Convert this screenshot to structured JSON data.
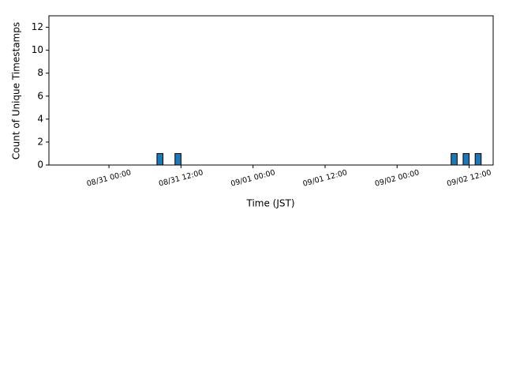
{
  "chart_data": {
    "type": "histogram",
    "xlabel": "Time (JST)",
    "ylabel": "Count of Unique Timestamps",
    "color": "#1f77b4",
    "edgecolor": "#000000",
    "bins": [
      -6,
      -5,
      -4,
      -3,
      -2,
      -1,
      0,
      1,
      2,
      3,
      4,
      5,
      6,
      7,
      8,
      9,
      10,
      11,
      12,
      13,
      14,
      15,
      16,
      17,
      18,
      19,
      20,
      21,
      22,
      23,
      24,
      25,
      26,
      27,
      28,
      29,
      30,
      31,
      32,
      33,
      34,
      35,
      36,
      37,
      38,
      39,
      40,
      41,
      42,
      43,
      44,
      45,
      46,
      47,
      48,
      49,
      50,
      51,
      52,
      53,
      54,
      55,
      56,
      57,
      58,
      59,
      60,
      61,
      62
    ],
    "counts": [
      0,
      0,
      0,
      0,
      0,
      0,
      0,
      0,
      0,
      0,
      0,
      0,
      0,
      0,
      1,
      0,
      0,
      1,
      0,
      0,
      0,
      0,
      0,
      0,
      0,
      0,
      0,
      0,
      0,
      0,
      0,
      0,
      0,
      0,
      0,
      0,
      0,
      0,
      0,
      0,
      0,
      0,
      0,
      0,
      0,
      0,
      0,
      0,
      0,
      0,
      0,
      0,
      0,
      0,
      0,
      0,
      0,
      0,
      0,
      0,
      0,
      0,
      0,
      1,
      0,
      1,
      0,
      1
    ],
    "xlim": [
      -10,
      64
    ],
    "xticks": [
      {
        "value": 0,
        "label": "08/31 00:00"
      },
      {
        "value": 12,
        "label": "08/31 12:00"
      },
      {
        "value": 24,
        "label": "09/01 00:00"
      },
      {
        "value": 36,
        "label": "09/01 12:00"
      },
      {
        "value": 48,
        "label": "09/02 00:00"
      },
      {
        "value": 60,
        "label": "09/02 12:00"
      }
    ],
    "ylim": [
      0,
      13
    ],
    "yticks": [
      0,
      2,
      4,
      6,
      8,
      10,
      12
    ]
  }
}
